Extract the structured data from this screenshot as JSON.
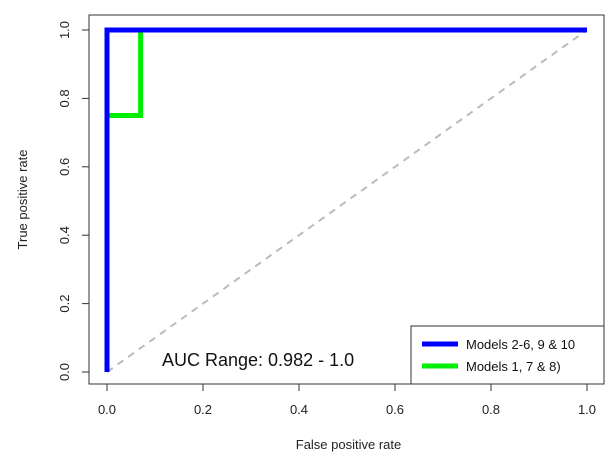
{
  "chart_data": {
    "type": "line",
    "xlabel": "False positive rate",
    "ylabel": "True positive rate",
    "xlim": [
      0,
      1
    ],
    "ylim": [
      0,
      1
    ],
    "x_ticks": [
      "0.0",
      "0.2",
      "0.4",
      "0.6",
      "0.8",
      "1.0"
    ],
    "y_ticks": [
      "0.0",
      "0.2",
      "0.4",
      "0.6",
      "0.8",
      "1.0"
    ],
    "grid": false,
    "legend_position": "bottom-right",
    "annotation": "AUC Range: 0.982 - 1.0",
    "series": [
      {
        "name": "Models 2-6, 9 & 10",
        "color": "#0000ff",
        "x": [
          0,
          0,
          1
        ],
        "y": [
          0,
          1,
          1
        ]
      },
      {
        "name": "Models 1, 7 & 8)",
        "color": "#00ee00",
        "x": [
          0,
          0,
          0.07,
          0.07,
          1
        ],
        "y": [
          0,
          0.75,
          0.75,
          1,
          1
        ]
      }
    ],
    "reference_line": {
      "x": [
        0,
        1
      ],
      "y": [
        0,
        1
      ],
      "color": "#bbbbbb",
      "style": "dashed"
    }
  }
}
